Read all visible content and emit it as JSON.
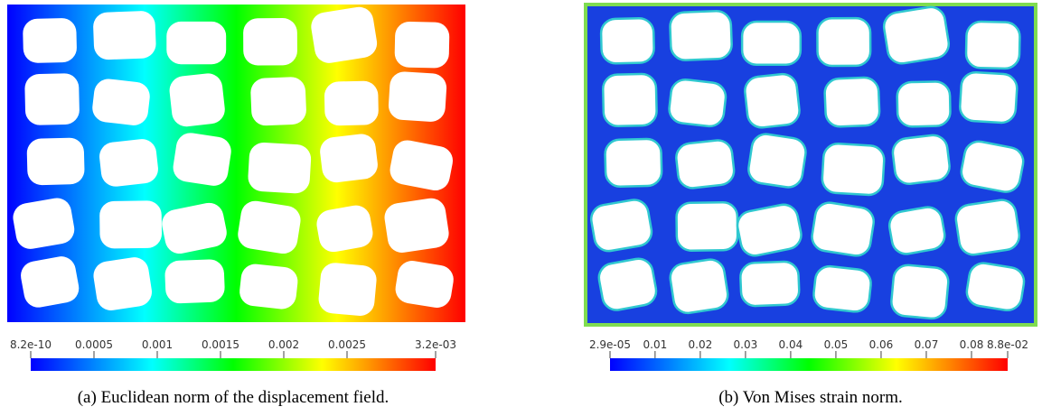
{
  "panels": [
    {
      "colorbar": {
        "range": [
          8.2e-10,
          0.0032
        ],
        "ticks": [
          {
            "value": 8.2e-10,
            "label": "8.2e-10"
          },
          {
            "value": 0.0005,
            "label": "0.0005"
          },
          {
            "value": 0.001,
            "label": "0.001"
          },
          {
            "value": 0.0015,
            "label": "0.0015"
          },
          {
            "value": 0.002,
            "label": "0.002"
          },
          {
            "value": 0.0025,
            "label": "0.0025"
          },
          {
            "value": 0.0032,
            "label": "3.2e-03"
          }
        ]
      },
      "caption": "(a) Euclidean norm of the displacement field."
    },
    {
      "colorbar": {
        "range": [
          2.9e-05,
          0.088
        ],
        "ticks": [
          {
            "value": 2.9e-05,
            "label": "2.9e-05"
          },
          {
            "value": 0.01,
            "label": "0.01"
          },
          {
            "value": 0.02,
            "label": "0.02"
          },
          {
            "value": 0.03,
            "label": "0.03"
          },
          {
            "value": 0.04,
            "label": "0.04"
          },
          {
            "value": 0.05,
            "label": "0.05"
          },
          {
            "value": 0.06,
            "label": "0.06"
          },
          {
            "value": 0.07,
            "label": "0.07"
          },
          {
            "value": 0.08,
            "label": "0.08"
          },
          {
            "value": 0.088,
            "label": "8.8e-02"
          }
        ]
      },
      "caption": "(b) Von Mises strain norm."
    }
  ]
}
